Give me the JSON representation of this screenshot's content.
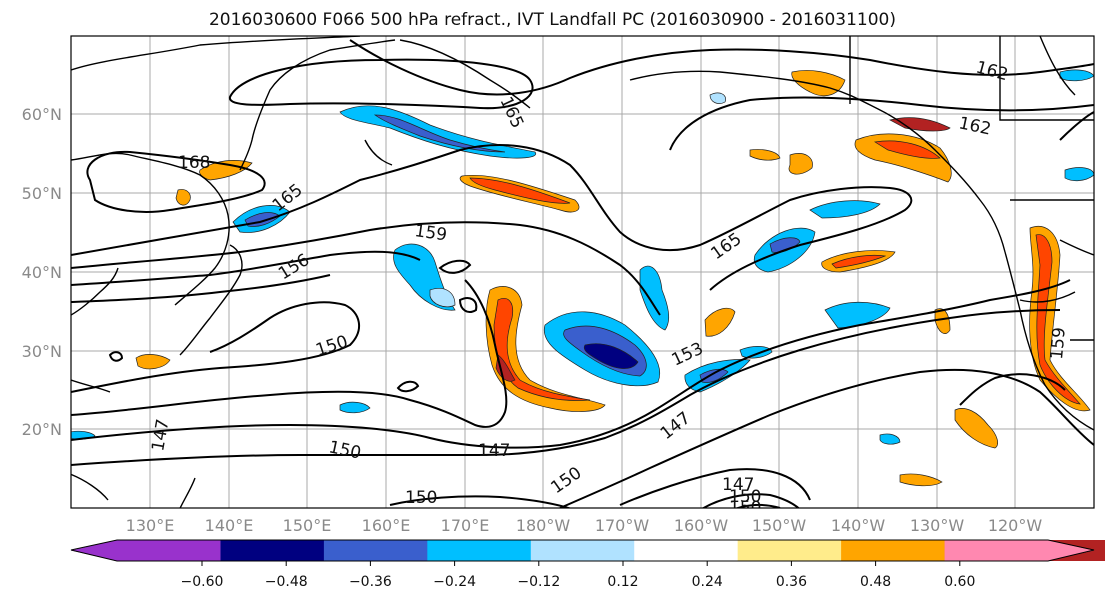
{
  "title": "2016030600 F066 500 hPa refract., IVT Landfall PC (2016030900 - 2016031100)",
  "lat_ticks": [
    "60°N",
    "50°N",
    "40°N",
    "30°N",
    "20°N"
  ],
  "lon_ticks": [
    "130°E",
    "140°E",
    "150°E",
    "160°E",
    "170°E",
    "180°W",
    "170°W",
    "160°W",
    "150°W",
    "140°W",
    "130°W",
    "120°W"
  ],
  "contour_labels": [
    "168",
    "165",
    "165",
    "165",
    "162",
    "162",
    "159",
    "156",
    "150",
    "153",
    "147",
    "147",
    "150",
    "147",
    "150",
    "150",
    "147",
    "150",
    "150",
    "159"
  ],
  "colorbar": {
    "tick_labels": [
      "-0.60",
      "-0.48",
      "-0.36",
      "-0.24",
      "-0.12",
      "0.12",
      "0.24",
      "0.36",
      "0.48",
      "0.60"
    ],
    "colors": [
      "#9932cc",
      "#000080",
      "#3a5fcd",
      "#00bfff",
      "#b0e2ff",
      "#ffffff",
      "#ffec8b",
      "#ffa500",
      "#ff4500",
      "#b22222",
      "#ff88b0"
    ]
  },
  "shading_colors": {
    "neg_strong": "#000080",
    "neg_mid": "#3a5fcd",
    "neg_light": "#00bfff",
    "neg_faint": "#b0e2ff",
    "pos_faint": "#ffec8b",
    "pos_light": "#ffa500",
    "pos_mid": "#ff4500",
    "pos_strong": "#b22222"
  }
}
